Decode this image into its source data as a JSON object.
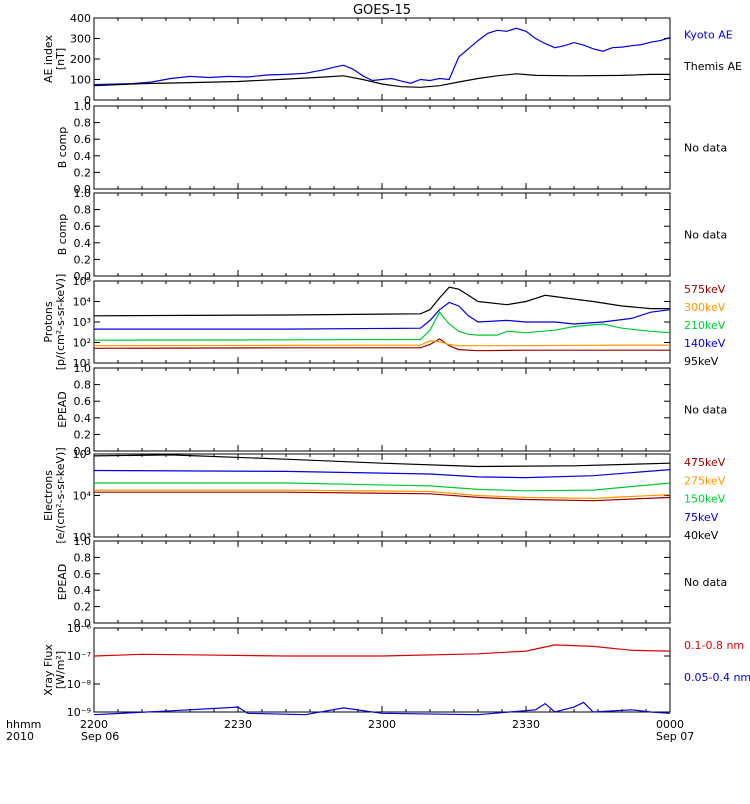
{
  "title": "GOES-15",
  "x_axis": {
    "ticks": [
      "2200",
      "2230",
      "2300",
      "2330",
      "0000"
    ],
    "start_date": "Sep 06",
    "end_date": "Sep 07",
    "left_label_top": "hhmm",
    "left_label_bottom": "2010"
  },
  "no_data_text": "No data",
  "chart_data": [
    {
      "type": "line",
      "panel": "ae",
      "ylabel": [
        "AE index",
        "[nT]"
      ],
      "ylim": [
        0,
        400
      ],
      "yticks": [
        "400",
        "300",
        "200",
        "100",
        "0"
      ],
      "x_minutes": [
        0,
        60
      ],
      "series": [
        {
          "name": "Kyoto AE",
          "color": "#0000dd",
          "points": [
            [
              0,
              75
            ],
            [
              4,
              80
            ],
            [
              6,
              88
            ],
            [
              8,
              105
            ],
            [
              10,
              115
            ],
            [
              12,
              110
            ],
            [
              14,
              115
            ],
            [
              16,
              112
            ],
            [
              18,
              122
            ],
            [
              20,
              125
            ],
            [
              22,
              130
            ],
            [
              24,
              148
            ],
            [
              25,
              160
            ],
            [
              26,
              170
            ],
            [
              27,
              150
            ],
            [
              28,
              118
            ],
            [
              29,
              95
            ],
            [
              30,
              100
            ],
            [
              31,
              105
            ],
            [
              32,
              92
            ],
            [
              33,
              82
            ],
            [
              34,
              100
            ],
            [
              35,
              95
            ],
            [
              36,
              105
            ],
            [
              37,
              100
            ],
            [
              38,
              210
            ],
            [
              39,
              250
            ],
            [
              40,
              290
            ],
            [
              41,
              325
            ],
            [
              42,
              340
            ],
            [
              43,
              335
            ],
            [
              44,
              350
            ],
            [
              45,
              335
            ],
            [
              46,
              300
            ],
            [
              47,
              275
            ],
            [
              48,
              255
            ],
            [
              49,
              265
            ],
            [
              50,
              280
            ],
            [
              51,
              268
            ],
            [
              52,
              250
            ],
            [
              53,
              238
            ],
            [
              54,
              255
            ],
            [
              55,
              258
            ],
            [
              56,
              265
            ],
            [
              57,
              270
            ],
            [
              58,
              282
            ],
            [
              59,
              290
            ],
            [
              60,
              305
            ]
          ]
        },
        {
          "name": "Themis AE",
          "color": "#000000",
          "points": [
            [
              0,
              70
            ],
            [
              5,
              80
            ],
            [
              10,
              85
            ],
            [
              15,
              90
            ],
            [
              20,
              102
            ],
            [
              24,
              112
            ],
            [
              26,
              118
            ],
            [
              28,
              100
            ],
            [
              30,
              78
            ],
            [
              32,
              65
            ],
            [
              34,
              62
            ],
            [
              36,
              70
            ],
            [
              38,
              88
            ],
            [
              40,
              105
            ],
            [
              42,
              118
            ],
            [
              44,
              128
            ],
            [
              46,
              120
            ],
            [
              50,
              118
            ],
            [
              55,
              120
            ],
            [
              58,
              125
            ],
            [
              60,
              125
            ]
          ]
        }
      ]
    },
    {
      "type": "line",
      "panel": "b1",
      "ylabel": [
        "B comp"
      ],
      "ylim": [
        0,
        1
      ],
      "yticks": [
        "1.0",
        "0.8",
        "0.6",
        "0.4",
        "0.2",
        "0.0"
      ],
      "series": []
    },
    {
      "type": "line",
      "panel": "b2",
      "ylabel": [
        "B comp"
      ],
      "ylim": [
        0,
        1
      ],
      "yticks": [
        "1.0",
        "0.8",
        "0.6",
        "0.4",
        "0.2",
        "0.0"
      ],
      "series": []
    },
    {
      "type": "line",
      "panel": "protons",
      "yscale": "log",
      "ylabel": [
        "Protons",
        "[p/(cm²-s-sr-keV)]"
      ],
      "ylim": [
        10,
        100000
      ],
      "yticks": [
        "10⁵",
        "10⁴",
        "10³",
        "10²",
        "10¹"
      ],
      "series": [
        {
          "name": "575keV",
          "color": "#990000",
          "points": [
            [
              0,
              52
            ],
            [
              20,
              55
            ],
            [
              34,
              55
            ],
            [
              35,
              80
            ],
            [
              36,
              150
            ],
            [
              37,
              70
            ],
            [
              38,
              45
            ],
            [
              40,
              40
            ],
            [
              45,
              42
            ],
            [
              60,
              42
            ]
          ]
        },
        {
          "name": "300keV",
          "color": "#ff9900",
          "points": [
            [
              0,
              70
            ],
            [
              20,
              72
            ],
            [
              34,
              75
            ],
            [
              35,
              120
            ],
            [
              36,
              110
            ],
            [
              37,
              80
            ],
            [
              38,
              70
            ],
            [
              45,
              70
            ],
            [
              55,
              75
            ],
            [
              60,
              75
            ]
          ]
        },
        {
          "name": "210keV",
          "color": "#00cc33",
          "points": [
            [
              0,
              130
            ],
            [
              20,
              135
            ],
            [
              34,
              140
            ],
            [
              35,
              400
            ],
            [
              36,
              3000
            ],
            [
              37,
              800
            ],
            [
              38,
              350
            ],
            [
              39,
              250
            ],
            [
              40,
              230
            ],
            [
              42,
              230
            ],
            [
              43,
              350
            ],
            [
              45,
              300
            ],
            [
              48,
              400
            ],
            [
              50,
              600
            ],
            [
              53,
              800
            ],
            [
              55,
              500
            ],
            [
              58,
              350
            ],
            [
              60,
              300
            ]
          ]
        },
        {
          "name": "140keV",
          "color": "#0000dd",
          "points": [
            [
              0,
              450
            ],
            [
              20,
              450
            ],
            [
              34,
              500
            ],
            [
              35,
              1200
            ],
            [
              36,
              4000
            ],
            [
              37,
              9000
            ],
            [
              38,
              6000
            ],
            [
              39,
              2000
            ],
            [
              40,
              1000
            ],
            [
              43,
              1200
            ],
            [
              45,
              1000
            ],
            [
              48,
              1000
            ],
            [
              50,
              800
            ],
            [
              53,
              1000
            ],
            [
              56,
              1500
            ],
            [
              58,
              3000
            ],
            [
              60,
              4000
            ]
          ]
        },
        {
          "name": "95keV",
          "color": "#000000",
          "points": [
            [
              0,
              2000
            ],
            [
              20,
              2200
            ],
            [
              34,
              2500
            ],
            [
              35,
              4000
            ],
            [
              36,
              15000
            ],
            [
              37,
              50000
            ],
            [
              38,
              40000
            ],
            [
              39,
              20000
            ],
            [
              40,
              10000
            ],
            [
              43,
              7000
            ],
            [
              45,
              10000
            ],
            [
              47,
              20000
            ],
            [
              49,
              15000
            ],
            [
              52,
              10000
            ],
            [
              55,
              6000
            ],
            [
              58,
              4500
            ],
            [
              60,
              4500
            ]
          ]
        }
      ]
    },
    {
      "type": "line",
      "panel": "epead1",
      "ylabel": [
        "EPEAD"
      ],
      "ylim": [
        0,
        1
      ],
      "yticks": [
        "1.0",
        "0.8",
        "0.6",
        "0.4",
        "0.2",
        "0.0"
      ],
      "series": []
    },
    {
      "type": "line",
      "panel": "electrons",
      "yscale": "log",
      "ylabel": [
        "Electrons",
        "[e/(cm²-s-sr-keV)]"
      ],
      "ylim": [
        1000,
        100000
      ],
      "yticks": [
        "10⁵",
        "10⁴",
        "10³"
      ],
      "series": [
        {
          "name": "475keV",
          "color": "#990000",
          "points": [
            [
              0,
              12000
            ],
            [
              20,
              12000
            ],
            [
              35,
              11000
            ],
            [
              40,
              9000
            ],
            [
              45,
              8000
            ],
            [
              52,
              7500
            ],
            [
              60,
              9000
            ]
          ]
        },
        {
          "name": "275keV",
          "color": "#ff9900",
          "points": [
            [
              0,
              13500
            ],
            [
              20,
              13500
            ],
            [
              35,
              12500
            ],
            [
              40,
              10000
            ],
            [
              45,
              9000
            ],
            [
              52,
              8500
            ],
            [
              60,
              10500
            ]
          ]
        },
        {
          "name": "150keV",
          "color": "#00cc33",
          "points": [
            [
              0,
              20000
            ],
            [
              20,
              20000
            ],
            [
              35,
              17000
            ],
            [
              40,
              14000
            ],
            [
              45,
              13000
            ],
            [
              52,
              13500
            ],
            [
              60,
              20000
            ]
          ]
        },
        {
          "name": "75keV",
          "color": "#0000dd",
          "points": [
            [
              0,
              40000
            ],
            [
              20,
              38000
            ],
            [
              35,
              33000
            ],
            [
              40,
              28000
            ],
            [
              45,
              27000
            ],
            [
              52,
              30000
            ],
            [
              60,
              42000
            ]
          ]
        },
        {
          "name": "40keV",
          "color": "#000000",
          "points": [
            [
              0,
              90000
            ],
            [
              8,
              95000
            ],
            [
              20,
              75000
            ],
            [
              30,
              60000
            ],
            [
              40,
              50000
            ],
            [
              50,
              52000
            ],
            [
              60,
              60000
            ]
          ]
        }
      ]
    },
    {
      "type": "line",
      "panel": "epead2",
      "ylabel": [
        "EPEAD"
      ],
      "ylim": [
        0,
        1
      ],
      "yticks": [
        "1.0",
        "0.8",
        "0.6",
        "0.4",
        "0.2",
        "0.0"
      ],
      "series": []
    },
    {
      "type": "line",
      "panel": "xray",
      "yscale": "log",
      "ylabel": [
        "Xray Flux",
        "[W/m²]"
      ],
      "ylim": [
        1e-09,
        1e-06
      ],
      "yticks": [
        "10⁻⁶",
        "10⁻⁷",
        "10⁻⁸",
        "10⁻⁹"
      ],
      "series": [
        {
          "name": "0.1-0.8 nm",
          "color": "#dd0000",
          "points": [
            [
              0,
              1e-07
            ],
            [
              5,
              1.15e-07
            ],
            [
              10,
              1.1e-07
            ],
            [
              20,
              1e-07
            ],
            [
              30,
              1e-07
            ],
            [
              40,
              1.2e-07
            ],
            [
              45,
              1.5e-07
            ],
            [
              48,
              2.5e-07
            ],
            [
              52,
              2.2e-07
            ],
            [
              56,
              1.6e-07
            ],
            [
              60,
              1.5e-07
            ]
          ]
        },
        {
          "name": "0.05-0.4 nm",
          "color": "#0000dd",
          "points": [
            [
              0,
              8e-10
            ],
            [
              8,
              1.1e-09
            ],
            [
              15,
              1.5e-09
            ],
            [
              16,
              9e-10
            ],
            [
              22,
              8e-10
            ],
            [
              26,
              1.4e-09
            ],
            [
              30,
              9e-10
            ],
            [
              40,
              8e-10
            ],
            [
              46,
              1.2e-09
            ],
            [
              47,
              2e-09
            ],
            [
              48,
              1e-09
            ],
            [
              50,
              1.5e-09
            ],
            [
              51,
              2.2e-09
            ],
            [
              52,
              1e-09
            ],
            [
              56,
              1.2e-09
            ],
            [
              58,
              1e-09
            ],
            [
              60,
              9e-10
            ]
          ]
        }
      ]
    }
  ]
}
